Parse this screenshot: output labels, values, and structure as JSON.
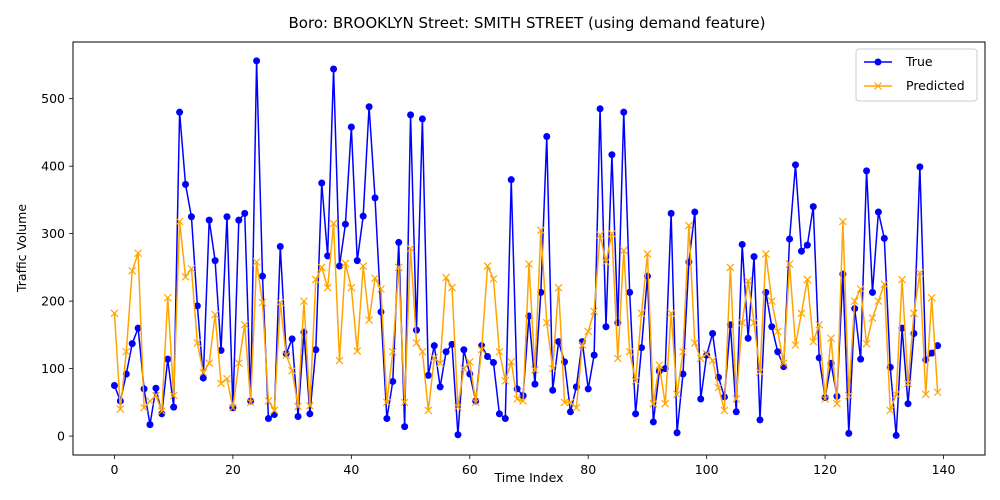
{
  "chart_data": {
    "type": "line",
    "title": "Boro: BROOKLYN Street: SMITH STREET (using demand feature)",
    "xlabel": "Time Index",
    "ylabel": "Traffic Volume",
    "xlim": [
      -7,
      147
    ],
    "ylim": [
      -28,
      584
    ],
    "xticks": [
      0,
      20,
      40,
      60,
      80,
      100,
      120,
      140
    ],
    "yticks": [
      0,
      100,
      200,
      300,
      400,
      500
    ],
    "grid": false,
    "legend_position": "top-right",
    "series": [
      {
        "name": "True",
        "color": "#0000ff",
        "marker": "circle",
        "values": [
          75,
          52,
          92,
          137,
          160,
          70,
          17,
          71,
          33,
          114,
          43,
          480,
          373,
          325,
          193,
          86,
          320,
          260,
          127,
          325,
          42,
          320,
          330,
          52,
          556,
          237,
          26,
          32,
          281,
          122,
          144,
          29,
          154,
          33,
          128,
          375,
          267,
          544,
          252,
          314,
          458,
          260,
          326,
          488,
          353,
          184,
          26,
          81,
          287,
          14,
          476,
          157,
          470,
          90,
          134,
          73,
          125,
          136,
          2,
          128,
          92,
          52,
          134,
          118,
          109,
          33,
          26,
          380,
          70,
          60,
          178,
          77,
          213,
          444,
          68,
          140,
          110,
          36,
          73,
          140,
          70,
          120,
          485,
          162,
          417,
          168,
          480,
          213,
          33,
          131,
          237,
          21,
          96,
          100,
          330,
          5,
          92,
          258,
          332,
          55,
          120,
          152,
          87,
          58,
          165,
          36,
          284,
          145,
          266,
          24,
          213,
          162,
          125,
          103,
          292,
          402,
          274,
          283,
          340,
          116,
          57,
          108,
          59,
          240,
          4,
          189,
          114,
          393,
          213,
          332,
          293,
          102,
          1,
          160,
          48,
          152,
          399,
          113,
          123,
          134
        ]
      },
      {
        "name": "Predicted",
        "color": "#ffa500",
        "marker": "x",
        "values": [
          182,
          40,
          125,
          245,
          271,
          42,
          52,
          60,
          37,
          205,
          60,
          318,
          236,
          248,
          138,
          94,
          108,
          180,
          78,
          85,
          42,
          108,
          165,
          50,
          258,
          198,
          52,
          38,
          198,
          120,
          97,
          44,
          200,
          45,
          232,
          250,
          220,
          315,
          112,
          256,
          220,
          126,
          252,
          172,
          234,
          218,
          50,
          125,
          250,
          50,
          278,
          138,
          125,
          38,
          116,
          108,
          235,
          220,
          43,
          100,
          110,
          50,
          128,
          252,
          233,
          125,
          82,
          110,
          55,
          52,
          255,
          98,
          305,
          168,
          100,
          220,
          50,
          50,
          42,
          135,
          155,
          185,
          298,
          258,
          300,
          115,
          275,
          125,
          82,
          182,
          270,
          48,
          105,
          48,
          182,
          62,
          125,
          312,
          138,
          115,
          122,
          112,
          72,
          38,
          250,
          55,
          168,
          230,
          168,
          95,
          270,
          200,
          155,
          108,
          255,
          135,
          182,
          232,
          140,
          165,
          55,
          145,
          48,
          318,
          60,
          200,
          218,
          137,
          175,
          200,
          225,
          38,
          62,
          232,
          78,
          182,
          242,
          62,
          205,
          65
        ]
      }
    ]
  }
}
